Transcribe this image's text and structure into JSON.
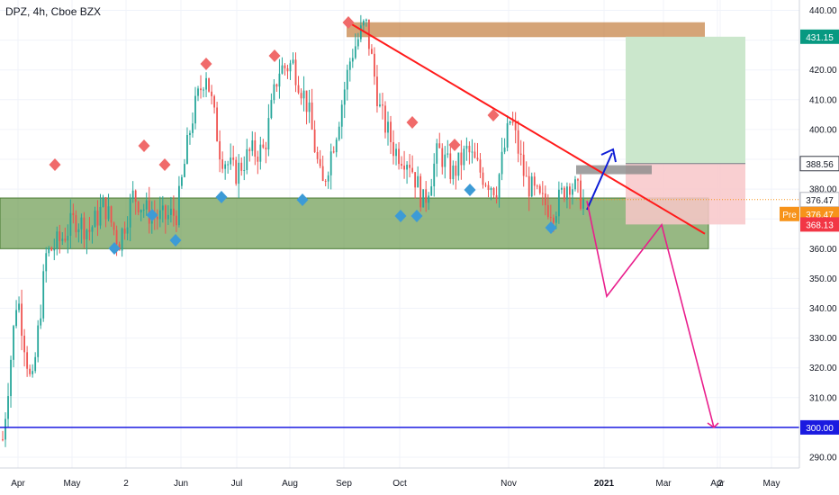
{
  "chart_title": "DPZ, 4h, Cboe BZX",
  "colors": {
    "up": "#26a69a",
    "down": "#ef5350",
    "zone_green": "#6b9a4e",
    "zone_brown": "#c7854a",
    "target_green": "#c8e6c9",
    "stop_red": "#f8c7c9",
    "trendline": "#ff1a1a",
    "projection": "#e91e8c",
    "blue_arrow": "#0d1dd6",
    "support_line": "#1a1ae0",
    "diamond_red": "#f06a6a",
    "diamond_blue": "#3d9bd6"
  },
  "chart_data": {
    "type": "line",
    "title": "DPZ, 4h, Cboe BZX",
    "symbol": "DPZ",
    "interval": "4h",
    "exchange": "Cboe BZX",
    "ylim": [
      285,
      443
    ],
    "y_ticks": [
      290,
      300,
      310,
      320,
      330,
      340,
      350,
      360,
      370,
      380,
      390,
      400,
      410,
      420,
      430,
      440
    ],
    "y_tick_labels": [
      "290.00",
      "300.00",
      "310.00",
      "320.00",
      "330.00",
      "340.00",
      "350.00",
      "360.00",
      "370.00",
      "380.00",
      "390.00",
      "400.00",
      "410.00",
      "420.00",
      "430.00",
      "440.00"
    ],
    "x_ticks": [
      "Apr",
      "May",
      "2",
      "Jun",
      "Jul",
      "Aug",
      "Sep",
      "Oct",
      "Nov",
      "2021",
      "Mar",
      "Apr",
      "May",
      "2"
    ],
    "price_path": [
      {
        "t": "Apr",
        "y": 296
      },
      {
        "t": "Apr",
        "y": 345
      },
      {
        "t": "Apr",
        "y": 312
      },
      {
        "t": "Apr",
        "y": 358
      },
      {
        "t": "May",
        "y": 363
      },
      {
        "t": "May",
        "y": 370
      },
      {
        "t": "May",
        "y": 366
      },
      {
        "t": "May",
        "y": 375
      },
      {
        "t": "2",
        "y": 362
      },
      {
        "t": "Jun",
        "y": 378
      },
      {
        "t": "Jun",
        "y": 372
      },
      {
        "t": "Jun",
        "y": 370
      },
      {
        "t": "Jul",
        "y": 372
      },
      {
        "t": "Jul",
        "y": 403
      },
      {
        "t": "Jul",
        "y": 420
      },
      {
        "t": "Jul",
        "y": 392
      },
      {
        "t": "Aug",
        "y": 385
      },
      {
        "t": "Aug",
        "y": 392
      },
      {
        "t": "Aug",
        "y": 393
      },
      {
        "t": "Aug",
        "y": 420
      },
      {
        "t": "Sep",
        "y": 422
      },
      {
        "t": "Sep",
        "y": 408
      },
      {
        "t": "Sep",
        "y": 380
      },
      {
        "t": "Sep",
        "y": 400
      },
      {
        "t": "Oct",
        "y": 425
      },
      {
        "t": "Oct",
        "y": 436
      },
      {
        "t": "Oct",
        "y": 406
      },
      {
        "t": "Oct",
        "y": 393
      },
      {
        "t": "Nov",
        "y": 390
      },
      {
        "t": "Nov",
        "y": 375
      },
      {
        "t": "Nov",
        "y": 393
      },
      {
        "t": "Nov",
        "y": 385
      },
      {
        "t": "Nov",
        "y": 393
      },
      {
        "t": "Nov",
        "y": 385
      },
      {
        "t": "Nov",
        "y": 380
      },
      {
        "t": "2021",
        "y": 404
      },
      {
        "t": "2021",
        "y": 383
      },
      {
        "t": "2021",
        "y": 376
      },
      {
        "t": "2021",
        "y": 373
      },
      {
        "t": "2021",
        "y": 383
      },
      {
        "t": "Mar",
        "y": 376
      }
    ],
    "swing_highs": [
      {
        "t": "May",
        "y": 388
      },
      {
        "t": "Jun",
        "y": 395
      },
      {
        "t": "Jun",
        "y": 388
      },
      {
        "t": "Jul",
        "y": 422
      },
      {
        "t": "Aug",
        "y": 425
      },
      {
        "t": "Oct",
        "y": 436
      },
      {
        "t": "Nov",
        "y": 402
      },
      {
        "t": "Nov",
        "y": 395
      },
      {
        "t": "2021",
        "y": 405
      }
    ],
    "swing_lows": [
      {
        "t": "2",
        "y": 360
      },
      {
        "t": "Jun",
        "y": 369
      },
      {
        "t": "Jun",
        "y": 362
      },
      {
        "t": "Jul",
        "y": 377
      },
      {
        "t": "Sep",
        "y": 377
      },
      {
        "t": "Nov",
        "y": 369
      },
      {
        "t": "Nov",
        "y": 369
      },
      {
        "t": "Nov",
        "y": 380
      },
      {
        "t": "2021",
        "y": 366
      }
    ],
    "zones": [
      {
        "name": "support",
        "from": 360,
        "to": 377
      },
      {
        "name": "resistance",
        "from": 431,
        "to": 436
      }
    ],
    "long_position": {
      "entry": 388.56,
      "target": 431.15,
      "stop": 368.13
    },
    "trendline": {
      "from": {
        "t": "Oct",
        "y": 436
      },
      "to": {
        "t": "Apr",
        "y": 362
      }
    },
    "horizontal_level": 300,
    "projection_path": [
      {
        "t": "Mar",
        "y": 376
      },
      {
        "t": "Mar",
        "y": 344
      },
      {
        "t": "Apr",
        "y": 368
      },
      {
        "t": "May",
        "y": 300
      }
    ],
    "price_labels": [
      {
        "text": "431.15",
        "value": 431.15,
        "color": "#089981"
      },
      {
        "text": "388.56",
        "value": 388.56,
        "color": "#363a45"
      },
      {
        "text": "376.47",
        "value": 376.47,
        "color": "#9598a1"
      },
      {
        "text": "376.47",
        "value": 376.47,
        "color": "#f7931a",
        "prefix": "Pre"
      },
      {
        "text": "368.13",
        "value": 368.13,
        "color": "#f23645"
      },
      {
        "text": "300.00",
        "value": 300,
        "color": "#1a1ae0"
      }
    ]
  }
}
